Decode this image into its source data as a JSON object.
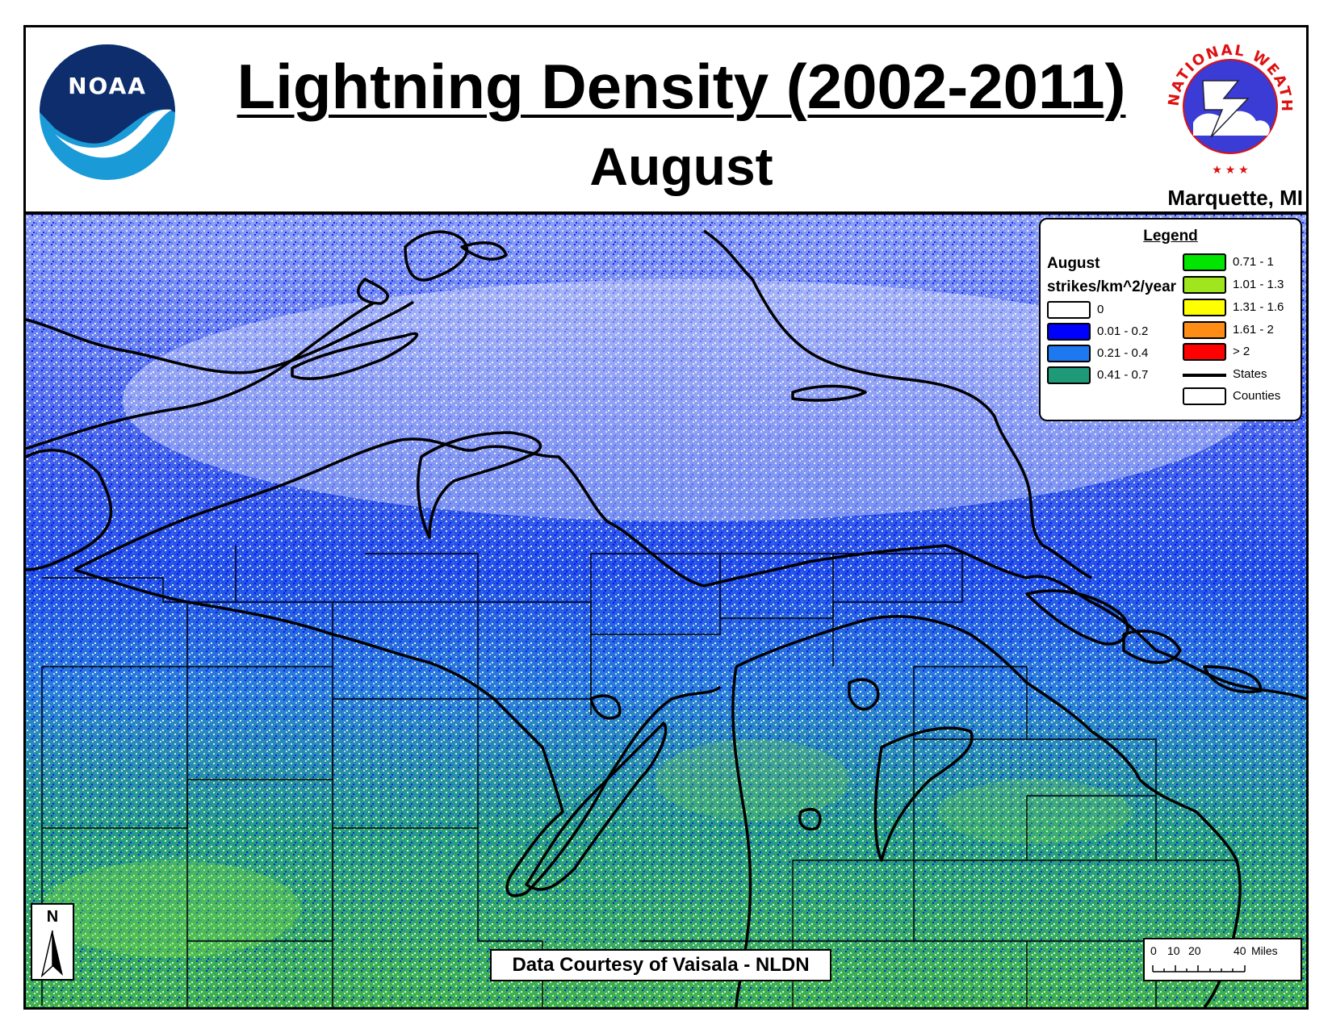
{
  "header": {
    "title": "Lightning Density (2002-2011)",
    "subtitle": "August",
    "office": "Marquette, MI"
  },
  "logos": {
    "noaa": "NOAA",
    "nws": "NATIONAL WEATHER SERVICE"
  },
  "legend": {
    "title": "Legend",
    "month": "August",
    "units": "strikes/km^2/year",
    "classes": [
      {
        "label": "0",
        "color": "#ffffff"
      },
      {
        "label": "0.01 - 0.2",
        "color": "#0000ff"
      },
      {
        "label": "0.21 - 0.4",
        "color": "#1e78f0"
      },
      {
        "label": "0.41 - 0.7",
        "color": "#1e9a78"
      },
      {
        "label": "0.71 - 1",
        "color": "#00e600"
      },
      {
        "label": "1.01 - 1.3",
        "color": "#a0e61e"
      },
      {
        "label": "1.31 - 1.6",
        "color": "#ffff00"
      },
      {
        "label": "1.61 - 2",
        "color": "#ff8c14"
      },
      {
        "label": "> 2",
        "color": "#ff0000"
      }
    ],
    "lines": [
      {
        "label": "States"
      },
      {
        "label": "Counties"
      }
    ]
  },
  "north_arrow": "N",
  "credit": "Data Courtesy of Vaisala - NLDN",
  "scale": {
    "ticks": [
      "0",
      "10",
      "20",
      "40"
    ],
    "unit": "Miles"
  }
}
